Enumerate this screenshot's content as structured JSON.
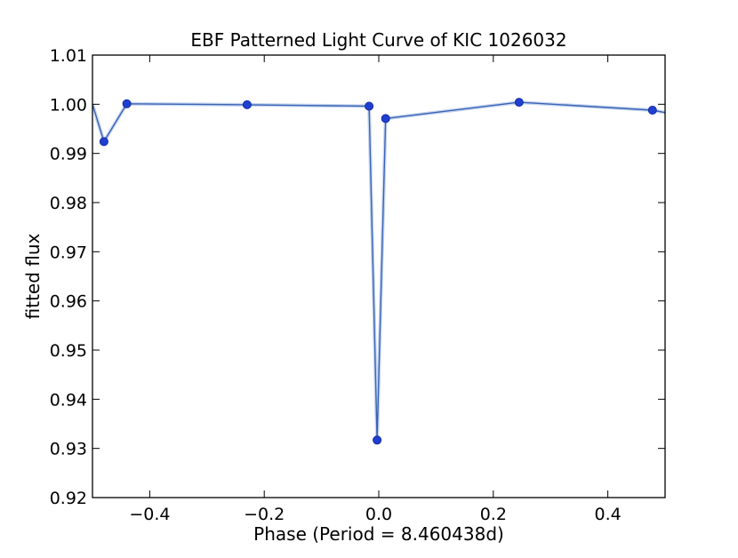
{
  "chart_data": {
    "type": "line",
    "title": "EBF Patterned Light Curve of KIC 1026032",
    "xlabel": "Phase (Period = 8.460438d)",
    "ylabel": "fitted flux",
    "xlim": [
      -0.5,
      0.5
    ],
    "ylim": [
      0.92,
      1.01
    ],
    "x_ticks": [
      -0.4,
      -0.2,
      0.0,
      0.2,
      0.4
    ],
    "x_tick_labels": [
      "−0.4",
      "−0.2",
      "0.0",
      "0.2",
      "0.4"
    ],
    "y_ticks": [
      0.92,
      0.93,
      0.94,
      0.95,
      0.96,
      0.97,
      0.98,
      0.99,
      1.0,
      1.01
    ],
    "y_tick_labels": [
      "0.92",
      "0.93",
      "0.94",
      "0.95",
      "0.96",
      "0.97",
      "0.98",
      "0.99",
      "1.00",
      "1.01"
    ],
    "grid": false,
    "colors": {
      "line": "#3a64b4",
      "marker": "#1f3fcf",
      "band": "#c7d6f0"
    },
    "series": [
      {
        "line_x": [
          -0.5,
          -0.48,
          -0.44,
          -0.23,
          -0.017,
          -0.003,
          0.012,
          0.245,
          0.478,
          0.5
        ],
        "line_y": [
          1.0,
          0.9924,
          1.0001,
          0.9999,
          0.9996,
          0.9317,
          0.9971,
          1.0004,
          0.9988,
          0.9983
        ],
        "marker_x": [
          -0.48,
          -0.44,
          -0.23,
          -0.017,
          -0.003,
          0.012,
          0.245,
          0.478
        ],
        "marker_y": [
          0.9924,
          1.0001,
          0.9999,
          0.9996,
          0.9317,
          0.9971,
          1.0004,
          0.9988
        ]
      }
    ]
  }
}
